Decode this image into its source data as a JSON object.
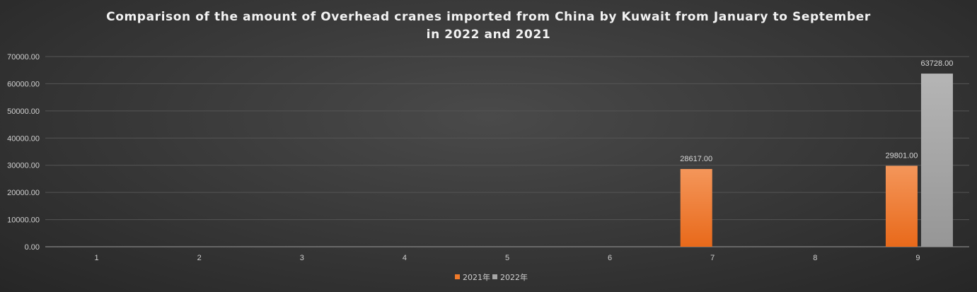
{
  "chart_data": {
    "type": "bar",
    "title_line1": "Comparison of the amount of Overhead cranes imported from China by Kuwait from January to September",
    "title_line2": "in 2022 and 2021",
    "categories": [
      "1",
      "2",
      "3",
      "4",
      "5",
      "6",
      "7",
      "8",
      "9"
    ],
    "series": [
      {
        "name": "2021年",
        "color": "#f07a2a",
        "values": [
          0,
          0,
          0,
          0,
          0,
          0,
          28617.0,
          0,
          29801.0
        ]
      },
      {
        "name": "2022年",
        "color": "#a6a6a6",
        "values": [
          0,
          0,
          0,
          0,
          0,
          0,
          0,
          0,
          63728.0
        ]
      }
    ],
    "data_labels": {
      "7-2021": "28617.00",
      "9-2021": "29801.00",
      "9-2022": "63728.00"
    },
    "yticks": [
      "0.00",
      "10000.00",
      "20000.00",
      "30000.00",
      "40000.00",
      "50000.00",
      "60000.00",
      "70000.00"
    ],
    "ylim": [
      0,
      70000
    ],
    "xlabel": "",
    "ylabel": "",
    "grid": true,
    "legend": "bottom"
  }
}
